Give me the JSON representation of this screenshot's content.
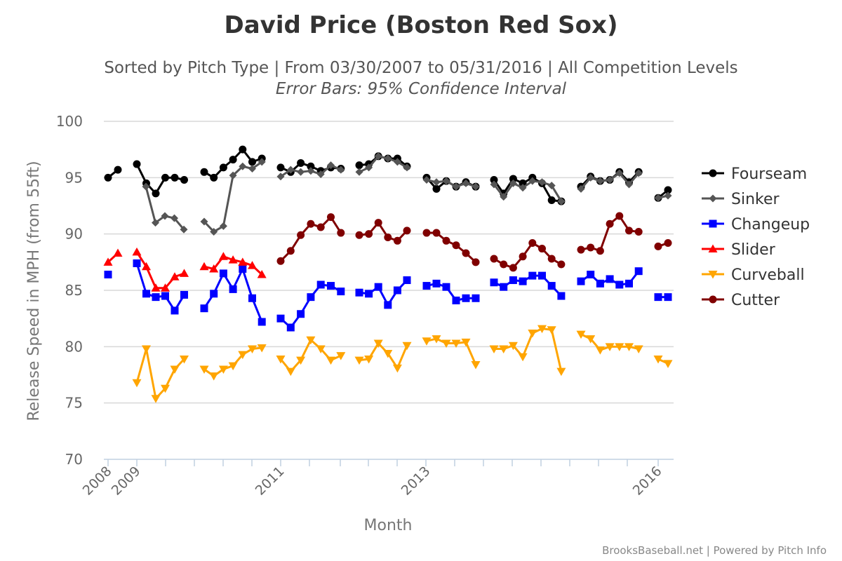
{
  "chart_data": {
    "type": "line",
    "title": "David Price (Boston Red Sox)",
    "subtitle": "Sorted by Pitch Type | From 03/30/2007 to 05/31/2016 | All Competition Levels",
    "subtitle2": "Error Bars: 95% Confidence Interval",
    "xlabel": "Month",
    "ylabel": "Release Speed in MPH (from 55ft)",
    "ylim": [
      70,
      100
    ],
    "yticks": [
      70,
      75,
      80,
      85,
      90,
      95,
      100
    ],
    "xticks": [
      "2008",
      "2009",
      "2011",
      "2013",
      "2016"
    ],
    "grid": true,
    "legend_position": "right",
    "credits": "BrooksBaseball.net | Powered by Pitch Info",
    "series": [
      {
        "name": "Fourseam",
        "color": "#000000",
        "marker": "circle",
        "segments": [
          [
            95,
            95.7
          ],
          [
            96.2,
            94.5,
            93.6,
            95,
            95,
            94.8
          ],
          [
            95.5,
            95,
            95.9,
            96.6,
            97.5,
            96.4,
            96.7
          ],
          [
            95.9,
            95.5,
            96.3,
            96,
            95.6,
            95.9,
            95.8
          ],
          [
            96.1,
            96.2,
            96.9,
            96.7,
            96.7,
            96
          ],
          [
            95,
            94,
            94.7,
            94.2,
            94.6,
            94.2
          ],
          [
            94.8,
            93.6,
            94.9,
            94.5,
            95,
            94.5,
            93,
            92.9
          ],
          [
            94.2,
            95.1,
            94.7,
            94.8,
            95.5,
            94.6,
            95.5
          ],
          [
            93.2,
            93.9
          ]
        ]
      },
      {
        "name": "Sinker",
        "color": "#555555",
        "marker": "diamond",
        "segments": [
          [
            94.2,
            91,
            91.6,
            91.4,
            90.4
          ],
          [
            91.1,
            90.2,
            90.7,
            95.2,
            96,
            95.8,
            96.4
          ],
          [
            95.1,
            95.7,
            95.5,
            95.6,
            95.3,
            96.1,
            95.7
          ],
          [
            95.5,
            95.9,
            96.9,
            96.7,
            96.4,
            95.9
          ],
          [
            94.8,
            94.6,
            94.7,
            94.2,
            94.5,
            94.2
          ],
          [
            94.4,
            93.3,
            94.5,
            94.1,
            94.7,
            94.6,
            94.3,
            92.9
          ],
          [
            94,
            95,
            94.7,
            94.8,
            95.4,
            94.4,
            95.4
          ],
          [
            93.2,
            93.4
          ]
        ]
      },
      {
        "name": "Changeup",
        "color": "#0000ff",
        "marker": "square",
        "segments": [
          [
            86.4
          ],
          [
            87.4,
            84.7,
            84.4,
            84.5,
            83.2,
            84.6
          ],
          [
            83.4,
            84.7,
            86.5,
            85.1,
            86.9,
            84.3,
            82.2
          ],
          [
            82.5,
            81.7,
            82.9,
            84.4,
            85.5,
            85.4,
            84.9
          ],
          [
            84.8,
            84.7,
            85.3,
            83.7,
            85,
            85.9
          ],
          [
            85.4,
            85.6,
            85.3,
            84.1,
            84.3,
            84.3
          ],
          [
            85.7,
            85.3,
            85.9,
            85.8,
            86.3,
            86.3,
            85.4,
            84.5
          ],
          [
            85.8,
            86.4,
            85.6,
            86,
            85.5,
            85.6,
            86.7
          ],
          [
            84.4,
            84.4
          ]
        ]
      },
      {
        "name": "Slider",
        "color": "#ff0000",
        "marker": "triangle",
        "segments": [
          [
            87.5,
            88.3
          ],
          [
            88.4,
            87.1,
            85.2,
            85.2,
            86.2,
            86.5
          ],
          [
            87.1,
            86.9,
            88,
            87.7,
            87.5,
            87.2,
            86.4
          ]
        ]
      },
      {
        "name": "Curveball",
        "color": "#ffa500",
        "marker": "triangle-down",
        "segments": [
          [
            76.8,
            79.8,
            75.4,
            76.3,
            78,
            78.9
          ],
          [
            78,
            77.4,
            78,
            78.3,
            79.3,
            79.8,
            79.9
          ],
          [
            78.9,
            77.8,
            78.8,
            80.6,
            79.8,
            78.8,
            79.2
          ],
          [
            78.8,
            78.9,
            80.3,
            79.4,
            78.1,
            80.1
          ],
          [
            80.5,
            80.7,
            80.3,
            80.3,
            80.4,
            78.4
          ],
          [
            79.8,
            79.8,
            80.1,
            79.1,
            81.2,
            81.6,
            81.5,
            77.8
          ],
          [
            81.1,
            80.7,
            79.7,
            80,
            80,
            80,
            79.8
          ],
          [
            78.9,
            78.5
          ]
        ]
      },
      {
        "name": "Cutter",
        "color": "#800000",
        "marker": "circle",
        "segments": [
          [
            87.6,
            88.5,
            89.9,
            90.9,
            90.6,
            91.5,
            90.1
          ],
          [
            89.9,
            90,
            91,
            89.7,
            89.4,
            90.3
          ],
          [
            90.1,
            90.1,
            89.4,
            89,
            88.3,
            87.5
          ],
          [
            87.8,
            87.3,
            87,
            88,
            89.2,
            88.7,
            87.8,
            87.3
          ],
          [
            88.6,
            88.8,
            88.5,
            90.9,
            91.6,
            90.3,
            90.2
          ],
          [
            88.9,
            89.2
          ]
        ]
      }
    ]
  }
}
